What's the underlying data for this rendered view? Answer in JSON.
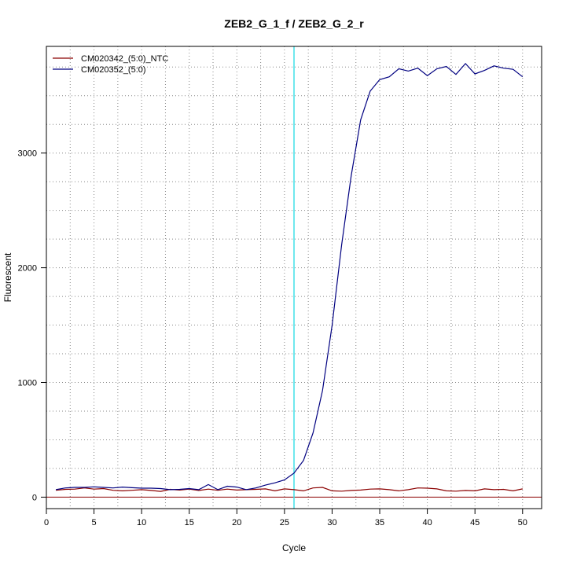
{
  "chart_data": {
    "type": "line",
    "title": "ZEB2_G_1_f / ZEB2_G_2_r",
    "xlabel": "Cycle",
    "ylabel": "Fluorescent",
    "xlim": [
      0,
      52
    ],
    "ylim": [
      -100,
      3930
    ],
    "x_ticks": [
      0,
      5,
      10,
      15,
      20,
      25,
      30,
      35,
      40,
      45,
      50
    ],
    "y_ticks": [
      0,
      1000,
      2000,
      3000
    ],
    "grid": true,
    "legend_position": "top-left",
    "threshold": {
      "cycle": 26,
      "color": "#40E0E8"
    },
    "baseline": {
      "value": 0,
      "color": "#8B0000"
    },
    "series": [
      {
        "name": "CM020342_(5:0)_NTC",
        "color": "#8B0000",
        "x": [
          1,
          2,
          3,
          4,
          5,
          6,
          7,
          8,
          9,
          10,
          11,
          12,
          13,
          14,
          15,
          16,
          17,
          18,
          19,
          20,
          21,
          22,
          23,
          24,
          25,
          26,
          27,
          28,
          29,
          30,
          31,
          32,
          33,
          34,
          35,
          36,
          37,
          38,
          39,
          40,
          41,
          42,
          43,
          44,
          45,
          46,
          47,
          48,
          49,
          50
        ],
        "y": [
          60,
          68,
          70,
          80,
          70,
          75,
          60,
          55,
          60,
          65,
          58,
          50,
          68,
          62,
          70,
          58,
          70,
          60,
          70,
          62,
          65,
          68,
          72,
          55,
          72,
          65,
          55,
          80,
          85,
          55,
          52,
          58,
          62,
          70,
          72,
          65,
          55,
          65,
          80,
          78,
          72,
          55,
          52,
          58,
          55,
          72,
          65,
          68,
          55,
          72
        ]
      },
      {
        "name": "CM020352_(5:0)",
        "color": "#000080",
        "x": [
          1,
          2,
          3,
          4,
          5,
          6,
          7,
          8,
          9,
          10,
          11,
          12,
          13,
          14,
          15,
          16,
          17,
          18,
          19,
          20,
          21,
          22,
          23,
          24,
          25,
          26,
          27,
          28,
          29,
          30,
          31,
          32,
          33,
          34,
          35,
          36,
          37,
          38,
          39,
          40,
          41,
          42,
          43,
          44,
          45,
          46,
          47,
          48,
          49,
          50
        ],
        "y": [
          65,
          80,
          85,
          85,
          90,
          85,
          80,
          88,
          82,
          78,
          78,
          75,
          65,
          68,
          75,
          65,
          110,
          65,
          95,
          88,
          65,
          80,
          105,
          125,
          150,
          210,
          320,
          560,
          930,
          1500,
          2200,
          2800,
          3290,
          3540,
          3640,
          3665,
          3735,
          3715,
          3740,
          3675,
          3735,
          3755,
          3685,
          3780,
          3690,
          3720,
          3760,
          3740,
          3730,
          3665
        ]
      }
    ]
  }
}
